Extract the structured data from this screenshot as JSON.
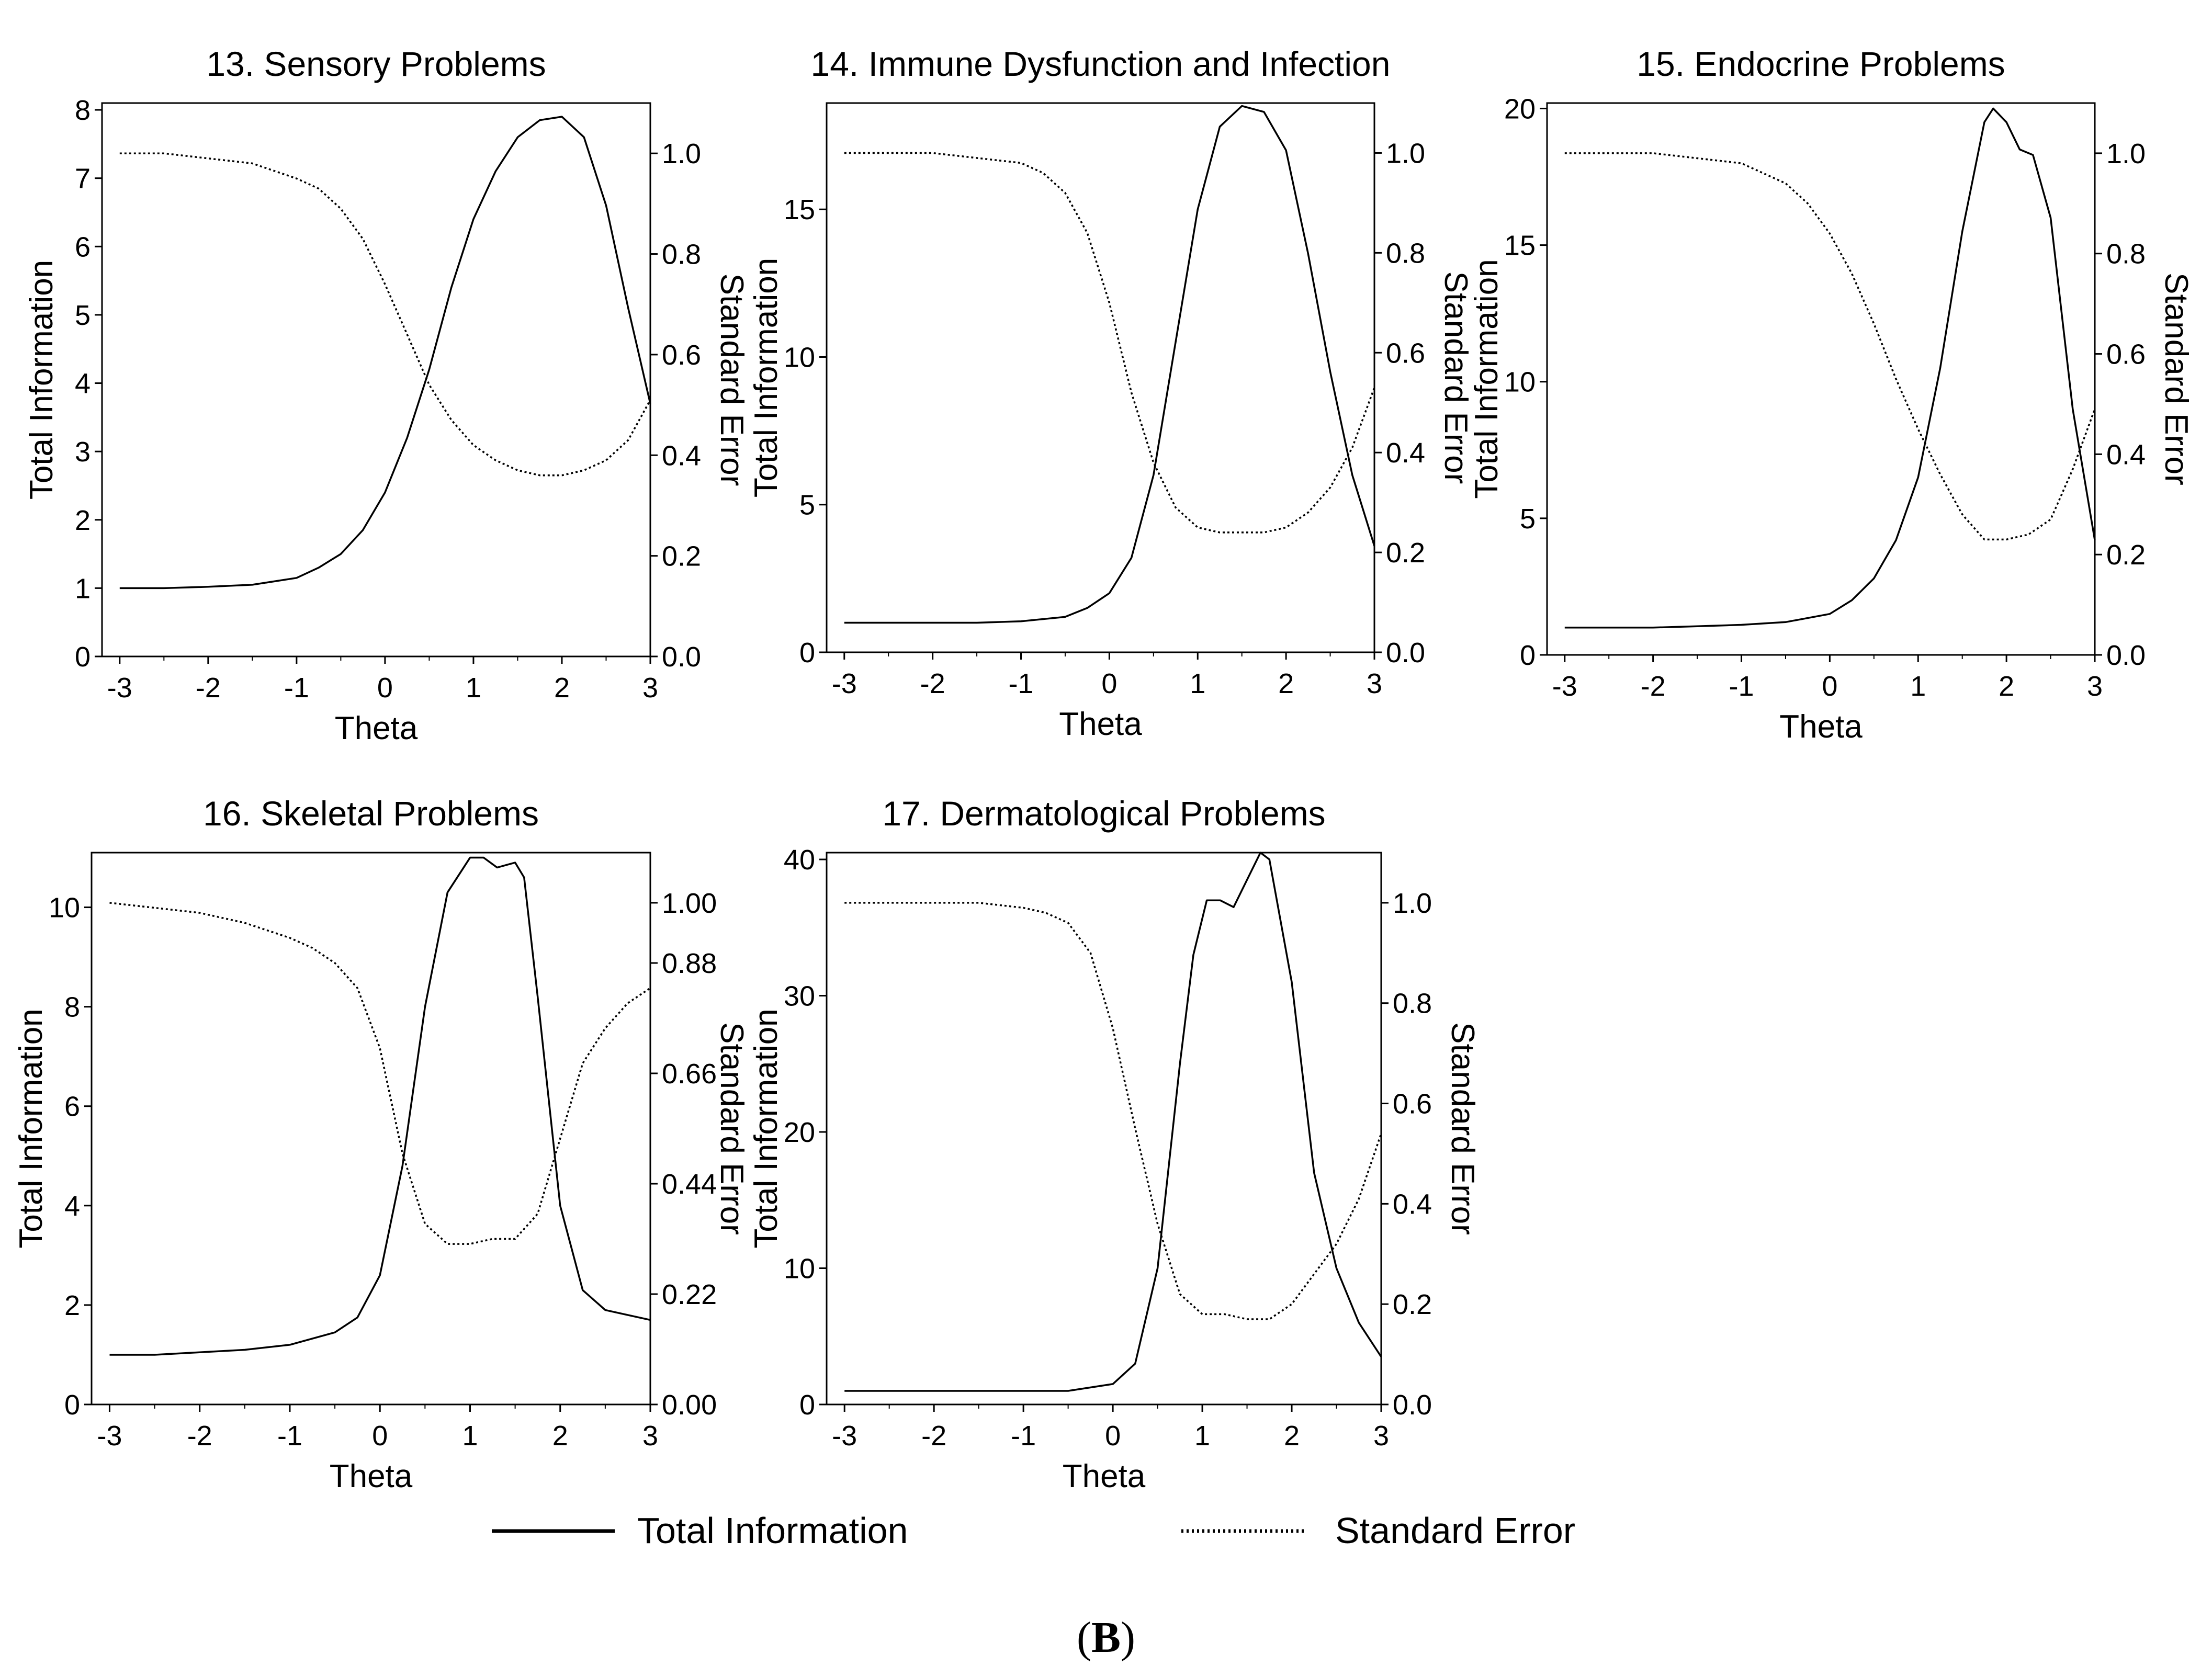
{
  "figure": {
    "panel_label_open": "(",
    "panel_label_letter": "B",
    "panel_label_close": ")",
    "line_color": "#000000",
    "background": "#ffffff"
  },
  "legend": {
    "total_information": "Total Information",
    "standard_error": "Standard Error"
  },
  "chart_data": [
    {
      "type": "line",
      "title": "13. Sensory Problems",
      "xlabel": "Theta",
      "ylabel_left": "Total Information",
      "ylabel_right": "Standard Error",
      "xlim": [
        -3.2,
        3.0
      ],
      "ylim_left": [
        0,
        8.1
      ],
      "ylim_right": [
        0,
        1.1
      ],
      "x_ticks": [
        -3,
        -2,
        -1,
        0,
        1,
        2,
        3
      ],
      "x_tick_labels": [
        "-3",
        "-2",
        "-1",
        "0",
        "1",
        "2",
        "3"
      ],
      "y_left_ticks": [
        0,
        1,
        2,
        3,
        4,
        5,
        6,
        7,
        8
      ],
      "y_left_tick_labels": [
        "0",
        "1",
        "2",
        "3",
        "4",
        "5",
        "6",
        "7",
        "8"
      ],
      "y_right_ticks": [
        0,
        0.2,
        0.4,
        0.6,
        0.8,
        1.0
      ],
      "y_right_tick_labels": [
        "0.0",
        "0.2",
        "0.4",
        "0.6",
        "0.8",
        "1.0"
      ],
      "series": [
        {
          "name": "Total Information",
          "axis": "left",
          "style": "solid",
          "x": [
            -3,
            -2.5,
            -2,
            -1.5,
            -1,
            -0.75,
            -0.5,
            -0.25,
            0,
            0.25,
            0.5,
            0.75,
            1,
            1.25,
            1.5,
            1.75,
            2,
            2.25,
            2.5,
            2.75,
            3
          ],
          "y": [
            1.0,
            1.0,
            1.02,
            1.05,
            1.15,
            1.3,
            1.5,
            1.85,
            2.4,
            3.2,
            4.2,
            5.4,
            6.4,
            7.1,
            7.6,
            7.85,
            7.9,
            7.6,
            6.6,
            5.1,
            3.7
          ]
        },
        {
          "name": "Standard Error",
          "axis": "right",
          "style": "dotted",
          "x": [
            -3,
            -2.5,
            -2,
            -1.5,
            -1,
            -0.75,
            -0.5,
            -0.25,
            0,
            0.25,
            0.5,
            0.75,
            1,
            1.25,
            1.5,
            1.75,
            2,
            2.25,
            2.5,
            2.75,
            3
          ],
          "y": [
            1.0,
            1.0,
            0.99,
            0.98,
            0.95,
            0.93,
            0.89,
            0.83,
            0.74,
            0.64,
            0.54,
            0.47,
            0.42,
            0.39,
            0.37,
            0.36,
            0.36,
            0.37,
            0.39,
            0.43,
            0.51
          ]
        }
      ]
    },
    {
      "type": "line",
      "title": "14. Immune Dysfunction and Infection",
      "xlabel": "Theta",
      "ylabel_left": "Total Information",
      "ylabel_right": "Standard Error",
      "xlim": [
        -3.2,
        3.0
      ],
      "ylim_left": [
        0,
        18.6
      ],
      "ylim_right": [
        0,
        1.1
      ],
      "x_ticks": [
        -3,
        -2,
        -1,
        0,
        1,
        2,
        3
      ],
      "x_tick_labels": [
        "-3",
        "-2",
        "-1",
        "0",
        "1",
        "2",
        "3"
      ],
      "y_left_ticks": [
        0,
        5,
        10,
        15
      ],
      "y_left_tick_labels": [
        "0",
        "5",
        "10",
        "15"
      ],
      "y_right_ticks": [
        0,
        0.2,
        0.4,
        0.6,
        0.8,
        1.0
      ],
      "y_right_tick_labels": [
        "0.0",
        "0.2",
        "0.4",
        "0.6",
        "0.8",
        "1.0"
      ],
      "series": [
        {
          "name": "Total Information",
          "axis": "left",
          "style": "solid",
          "x": [
            -3,
            -2.5,
            -2,
            -1.5,
            -1,
            -0.5,
            -0.25,
            0,
            0.25,
            0.5,
            0.75,
            1,
            1.25,
            1.5,
            1.75,
            2,
            2.25,
            2.5,
            2.75,
            3
          ],
          "y": [
            1.0,
            1.0,
            1.0,
            1.0,
            1.05,
            1.2,
            1.5,
            2.0,
            3.2,
            6.0,
            10.5,
            15.0,
            17.8,
            18.5,
            18.3,
            17.0,
            13.5,
            9.5,
            6.0,
            3.6
          ]
        },
        {
          "name": "Standard Error",
          "axis": "right",
          "style": "dotted",
          "x": [
            -3,
            -2.5,
            -2,
            -1.5,
            -1,
            -0.75,
            -0.5,
            -0.25,
            0,
            0.25,
            0.5,
            0.75,
            1,
            1.25,
            1.5,
            1.75,
            2,
            2.25,
            2.5,
            2.75,
            3
          ],
          "y": [
            1.0,
            1.0,
            1.0,
            0.99,
            0.98,
            0.96,
            0.92,
            0.84,
            0.7,
            0.52,
            0.38,
            0.29,
            0.25,
            0.24,
            0.24,
            0.24,
            0.25,
            0.28,
            0.33,
            0.41,
            0.53
          ]
        }
      ]
    },
    {
      "type": "line",
      "title": "15. Endocrine Problems",
      "xlabel": "Theta",
      "ylabel_left": "Total Information",
      "ylabel_right": "Standard Error",
      "xlim": [
        -3.2,
        3.0
      ],
      "ylim_left": [
        0,
        20.2
      ],
      "ylim_right": [
        0,
        1.1
      ],
      "x_ticks": [
        -3,
        -2,
        -1,
        0,
        1,
        2,
        3
      ],
      "x_tick_labels": [
        "-3",
        "-2",
        "-1",
        "0",
        "1",
        "2",
        "3"
      ],
      "y_left_ticks": [
        0,
        5,
        10,
        15,
        20
      ],
      "y_left_tick_labels": [
        "0",
        "5",
        "10",
        "15",
        "20"
      ],
      "y_right_ticks": [
        0,
        0.2,
        0.4,
        0.6,
        0.8,
        1.0
      ],
      "y_right_tick_labels": [
        "0.0",
        "0.2",
        "0.4",
        "0.6",
        "0.8",
        "1.0"
      ],
      "series": [
        {
          "name": "Total Information",
          "axis": "left",
          "style": "solid",
          "x": [
            -3,
            -2.5,
            -2,
            -1.5,
            -1,
            -0.5,
            0,
            0.25,
            0.5,
            0.75,
            1,
            1.25,
            1.5,
            1.75,
            1.85,
            2,
            2.15,
            2.3,
            2.5,
            2.75,
            3
          ],
          "y": [
            1.0,
            1.0,
            1.0,
            1.05,
            1.1,
            1.2,
            1.5,
            2.0,
            2.8,
            4.2,
            6.5,
            10.5,
            15.5,
            19.5,
            20.0,
            19.5,
            18.5,
            18.3,
            16.0,
            9.0,
            4.2
          ]
        },
        {
          "name": "Standard Error",
          "axis": "right",
          "style": "dotted",
          "x": [
            -3,
            -2.5,
            -2,
            -1.5,
            -1,
            -0.75,
            -0.5,
            -0.25,
            0,
            0.25,
            0.5,
            0.75,
            1,
            1.25,
            1.5,
            1.75,
            2,
            2.25,
            2.5,
            2.75,
            3
          ],
          "y": [
            1.0,
            1.0,
            1.0,
            0.99,
            0.98,
            0.96,
            0.94,
            0.9,
            0.84,
            0.76,
            0.66,
            0.55,
            0.45,
            0.36,
            0.28,
            0.23,
            0.23,
            0.24,
            0.27,
            0.37,
            0.49
          ]
        }
      ]
    },
    {
      "type": "line",
      "title": "16. Skeletal Problems",
      "xlabel": "Theta",
      "ylabel_left": "Total Information",
      "ylabel_right": "Standard Error",
      "xlim": [
        -3.2,
        3.0
      ],
      "ylim_left": [
        0,
        11.1
      ],
      "ylim_right": [
        0,
        1.1
      ],
      "x_ticks": [
        -3,
        -2,
        -1,
        0,
        1,
        2,
        3
      ],
      "x_tick_labels": [
        "-3",
        "-2",
        "-1",
        "0",
        "1",
        "2",
        "3"
      ],
      "y_left_ticks": [
        0,
        2,
        4,
        6,
        8,
        10
      ],
      "y_left_tick_labels": [
        "0",
        "2",
        "4",
        "6",
        "8",
        "10"
      ],
      "y_right_ticks": [
        0,
        0.22,
        0.44,
        0.66,
        0.88,
        1.0
      ],
      "y_right_tick_labels": [
        "0.00",
        "0.22",
        "0.44",
        "0.66",
        "0.88",
        "1.00"
      ],
      "series": [
        {
          "name": "Total Information",
          "axis": "left",
          "style": "solid",
          "x": [
            -3,
            -2.5,
            -2,
            -1.5,
            -1,
            -0.5,
            -0.25,
            0,
            0.25,
            0.5,
            0.75,
            1,
            1.15,
            1.3,
            1.5,
            1.6,
            1.75,
            2,
            2.25,
            2.5,
            2.75,
            3
          ],
          "y": [
            1.0,
            1.0,
            1.05,
            1.1,
            1.2,
            1.45,
            1.75,
            2.6,
            4.8,
            8.0,
            10.3,
            11.0,
            11.0,
            10.8,
            10.9,
            10.6,
            8.2,
            4.0,
            2.3,
            1.9,
            1.8,
            1.7
          ]
        },
        {
          "name": "Standard Error",
          "axis": "right",
          "style": "dotted",
          "x": [
            -3,
            -2.5,
            -2,
            -1.5,
            -1,
            -0.75,
            -0.5,
            -0.25,
            0,
            0.25,
            0.5,
            0.75,
            1,
            1.25,
            1.5,
            1.75,
            2,
            2.25,
            2.5,
            2.75,
            3
          ],
          "y": [
            1.0,
            0.99,
            0.98,
            0.96,
            0.93,
            0.91,
            0.88,
            0.83,
            0.71,
            0.5,
            0.36,
            0.32,
            0.32,
            0.33,
            0.33,
            0.38,
            0.53,
            0.68,
            0.75,
            0.8,
            0.83
          ]
        }
      ]
    },
    {
      "type": "line",
      "title": "17. Dermatological Problems",
      "xlabel": "Theta",
      "ylabel_left": "Total Information",
      "ylabel_right": "Standard Error",
      "xlim": [
        -3.2,
        3.0
      ],
      "ylim_left": [
        0,
        40.5
      ],
      "ylim_right": [
        0,
        1.1
      ],
      "x_ticks": [
        -3,
        -2,
        -1,
        0,
        1,
        2,
        3
      ],
      "x_tick_labels": [
        "-3",
        "-2",
        "-1",
        "0",
        "1",
        "2",
        "3"
      ],
      "y_left_ticks": [
        0,
        10,
        20,
        30,
        40
      ],
      "y_left_tick_labels": [
        "0",
        "10",
        "20",
        "30",
        "40"
      ],
      "y_right_ticks": [
        0,
        0.2,
        0.4,
        0.6,
        0.8,
        1.0
      ],
      "y_right_tick_labels": [
        "0.0",
        "0.2",
        "0.4",
        "0.6",
        "0.8",
        "1.0"
      ],
      "series": [
        {
          "name": "Total Information",
          "axis": "left",
          "style": "solid",
          "x": [
            -3,
            -2.5,
            -2,
            -1.5,
            -1,
            -0.5,
            0,
            0.25,
            0.5,
            0.75,
            0.9,
            1.05,
            1.2,
            1.35,
            1.5,
            1.65,
            1.75,
            2,
            2.25,
            2.5,
            2.75,
            3
          ],
          "y": [
            1.0,
            1.0,
            1.0,
            1.0,
            1.0,
            1.0,
            1.5,
            3.0,
            10.0,
            25.0,
            33.0,
            37.0,
            37.0,
            36.5,
            38.5,
            40.5,
            40.0,
            31.0,
            17.0,
            10.0,
            6.0,
            3.5
          ]
        },
        {
          "name": "Standard Error",
          "axis": "right",
          "style": "dotted",
          "x": [
            -3,
            -2.5,
            -2,
            -1.5,
            -1,
            -0.75,
            -0.5,
            -0.25,
            0,
            0.25,
            0.5,
            0.75,
            1,
            1.25,
            1.5,
            1.75,
            2,
            2.25,
            2.5,
            2.75,
            3
          ],
          "y": [
            1.0,
            1.0,
            1.0,
            1.0,
            0.99,
            0.98,
            0.96,
            0.9,
            0.75,
            0.55,
            0.36,
            0.22,
            0.18,
            0.18,
            0.17,
            0.17,
            0.2,
            0.26,
            0.32,
            0.41,
            0.54
          ]
        }
      ]
    }
  ]
}
